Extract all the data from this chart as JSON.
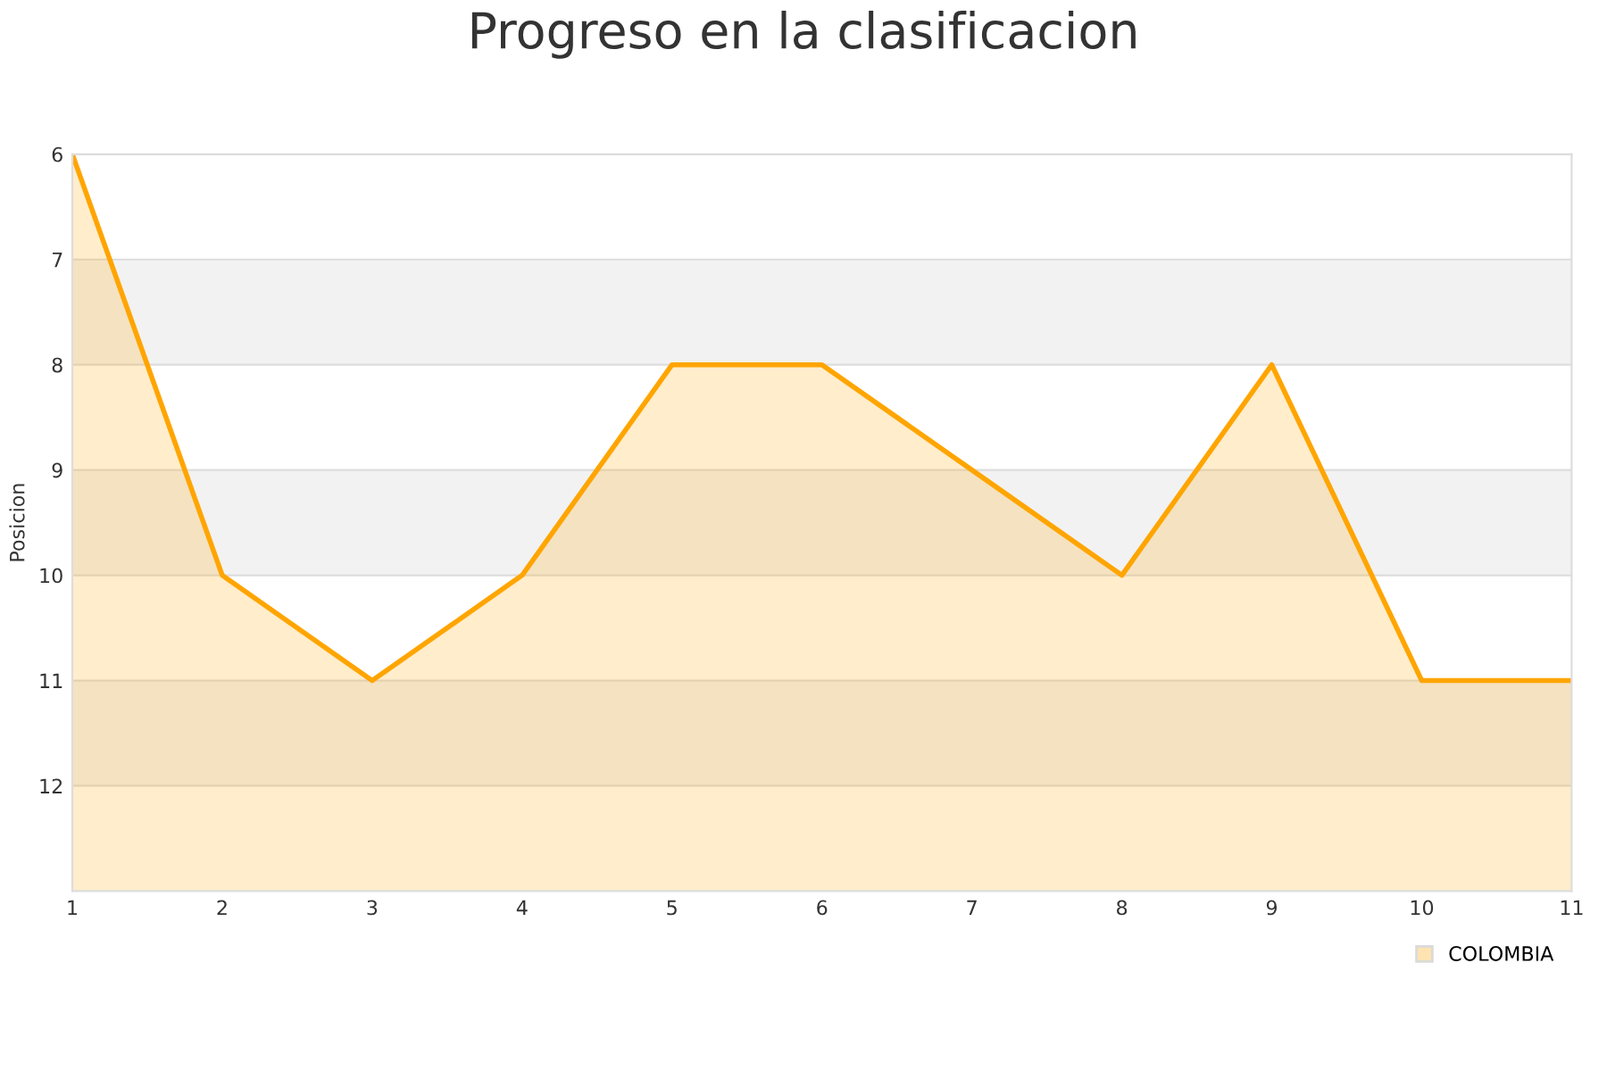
{
  "chart_data": {
    "type": "area",
    "title": "Progreso en la clasificacion",
    "ylabel": "Posicion",
    "x": [
      1,
      2,
      3,
      4,
      5,
      6,
      7,
      8,
      9,
      10,
      11
    ],
    "series": [
      {
        "name": "COLOMBIA",
        "color": "#ffa500",
        "values": [
          6,
          10,
          11,
          10,
          8,
          8,
          9,
          10,
          8,
          11,
          11
        ]
      }
    ],
    "xlim": [
      1,
      11
    ],
    "xticks": [
      1,
      2,
      3,
      4,
      5,
      6,
      7,
      8,
      9,
      10,
      11
    ],
    "ylim": [
      13,
      6
    ],
    "yticks": [
      6,
      7,
      8,
      9,
      10,
      11,
      12
    ],
    "bands": [
      {
        "axis": "y",
        "from": 7,
        "to": 8,
        "color": "#f2f2f2"
      },
      {
        "axis": "y",
        "from": 9,
        "to": 10,
        "color": "#f2f2f2"
      },
      {
        "axis": "y",
        "from": 11,
        "to": 12,
        "color": "#f2f2f2"
      }
    ],
    "grid": "y",
    "legend": "bottom right"
  }
}
